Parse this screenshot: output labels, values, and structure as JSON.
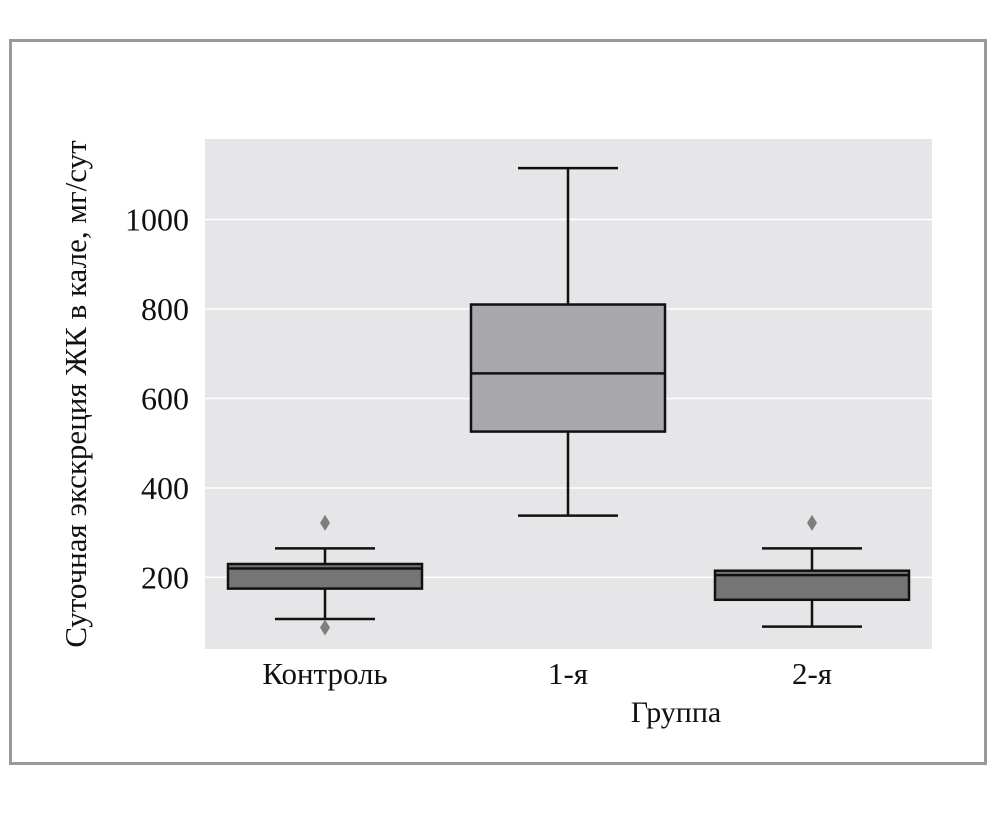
{
  "chart_data": {
    "type": "box",
    "title": "",
    "xlabel": "Группа",
    "ylabel": "Суточная экскреция ЖК в кале, мг/сут",
    "categories": [
      "Контроль",
      "1-я",
      "2-я"
    ],
    "ylim": [
      40,
      1180
    ],
    "yticks": [
      200,
      400,
      600,
      800,
      1000
    ],
    "grid": true,
    "boxes": [
      {
        "category": "Контроль",
        "whisker_low": 107,
        "q1": 175,
        "median": 220,
        "q3": 230,
        "whisker_high": 265,
        "outliers": [
          88,
          322
        ],
        "color": "#757575"
      },
      {
        "category": "1-я",
        "whisker_low": 338,
        "q1": 526,
        "median": 656,
        "q3": 810,
        "whisker_high": 1115,
        "outliers": [],
        "color": "#a9a9ad"
      },
      {
        "category": "2-я",
        "whisker_low": 90,
        "q1": 150,
        "median": 205,
        "q3": 215,
        "whisker_high": 265,
        "outliers": [
          322
        ],
        "color": "#757575"
      }
    ],
    "colors": {
      "plot_background": "#e6e6e8",
      "grid": "#ffffff",
      "outline": "#111111",
      "outlier": "#7f7f7f",
      "frame": "#9a9a9a"
    }
  }
}
